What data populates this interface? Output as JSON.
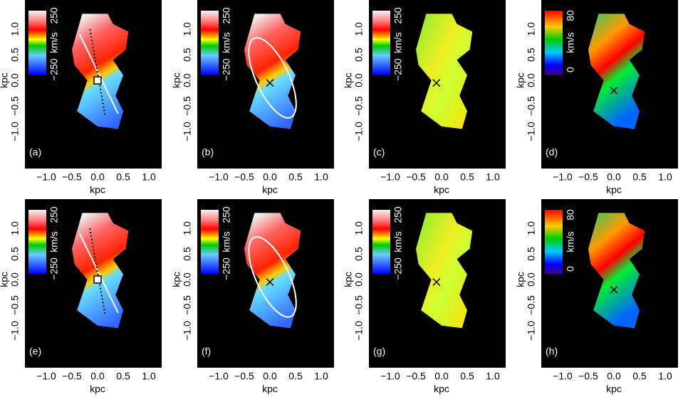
{
  "panels": [
    {
      "label": "(a)",
      "colorbar": {
        "max": "250",
        "unit": "km/s",
        "min": "−250"
      },
      "x_label": "kpc",
      "y_label": "kpc",
      "x_ticks": [
        "−1.0",
        "−0.5",
        "0.0",
        "0.5",
        "1.0"
      ],
      "y_ticks": [
        "−1.0",
        "−0.5",
        "0.0",
        "0.5",
        "1.0"
      ]
    },
    {
      "label": "(b)",
      "colorbar": {
        "max": "250",
        "unit": "km/s",
        "min": "−250"
      },
      "x_label": "kpc",
      "y_label": "kpc",
      "x_ticks": [
        "−1.0",
        "−0.5",
        "0.0",
        "0.5",
        "1.0"
      ],
      "y_ticks": [
        "−1.0",
        "−0.5",
        "0.0",
        "0.5",
        "1.0"
      ]
    },
    {
      "label": "(c)",
      "colorbar": {
        "max": "250",
        "unit": "km/s",
        "min": "−250"
      },
      "x_label": "kpc",
      "y_label": "kpc",
      "x_ticks": [
        "−1.0",
        "−0.5",
        "0.0",
        "0.5",
        "1.0"
      ],
      "y_ticks": [
        "−1.0",
        "−0.5",
        "0.0",
        "0.5",
        "1.0"
      ]
    },
    {
      "label": "(d)",
      "colorbar": {
        "max": "80",
        "unit": "km/s",
        "min": "0"
      },
      "x_label": "kpc",
      "y_label": "kpc",
      "x_ticks": [
        "−1.0",
        "−0.5",
        "0.0",
        "0.5",
        "1.0"
      ],
      "y_ticks": [
        "−1.0",
        "−0.5",
        "0.0",
        "0.5",
        "1.0"
      ]
    },
    {
      "label": "(e)",
      "colorbar": {
        "max": "250",
        "unit": "km/s",
        "min": "−250"
      },
      "x_label": "kpc",
      "y_label": "kpc",
      "x_ticks": [
        "−1.0",
        "−0.5",
        "0.0",
        "0.5",
        "1.0"
      ],
      "y_ticks": [
        "−1.0",
        "−0.5",
        "0.0",
        "0.5",
        "1.0"
      ]
    },
    {
      "label": "(f)",
      "colorbar": {
        "max": "250",
        "unit": "km/s",
        "min": "−250"
      },
      "x_label": "kpc",
      "y_label": "kpc",
      "x_ticks": [
        "−1.0",
        "−0.5",
        "0.0",
        "0.5",
        "1.0"
      ],
      "y_ticks": [
        "−1.0",
        "−0.5",
        "0.0",
        "0.5",
        "1.0"
      ]
    },
    {
      "label": "(g)",
      "colorbar": {
        "max": "250",
        "unit": "km/s",
        "min": "−250"
      },
      "x_label": "kpc",
      "y_label": "kpc",
      "x_ticks": [
        "−1.0",
        "−0.5",
        "0.0",
        "0.5",
        "1.0"
      ],
      "y_ticks": [
        "−1.0",
        "−0.5",
        "0.0",
        "0.5",
        "1.0"
      ]
    },
    {
      "label": "(h)",
      "colorbar": {
        "max": "80",
        "unit": "km/s",
        "min": "0"
      },
      "x_label": "kpc",
      "y_label": "kpc",
      "x_ticks": [
        "−1.0",
        "−0.5",
        "0.0",
        "0.5",
        "1.0"
      ],
      "y_ticks": [
        "−1.0",
        "−0.5",
        "0.0",
        "0.5",
        "1.0"
      ]
    }
  ]
}
